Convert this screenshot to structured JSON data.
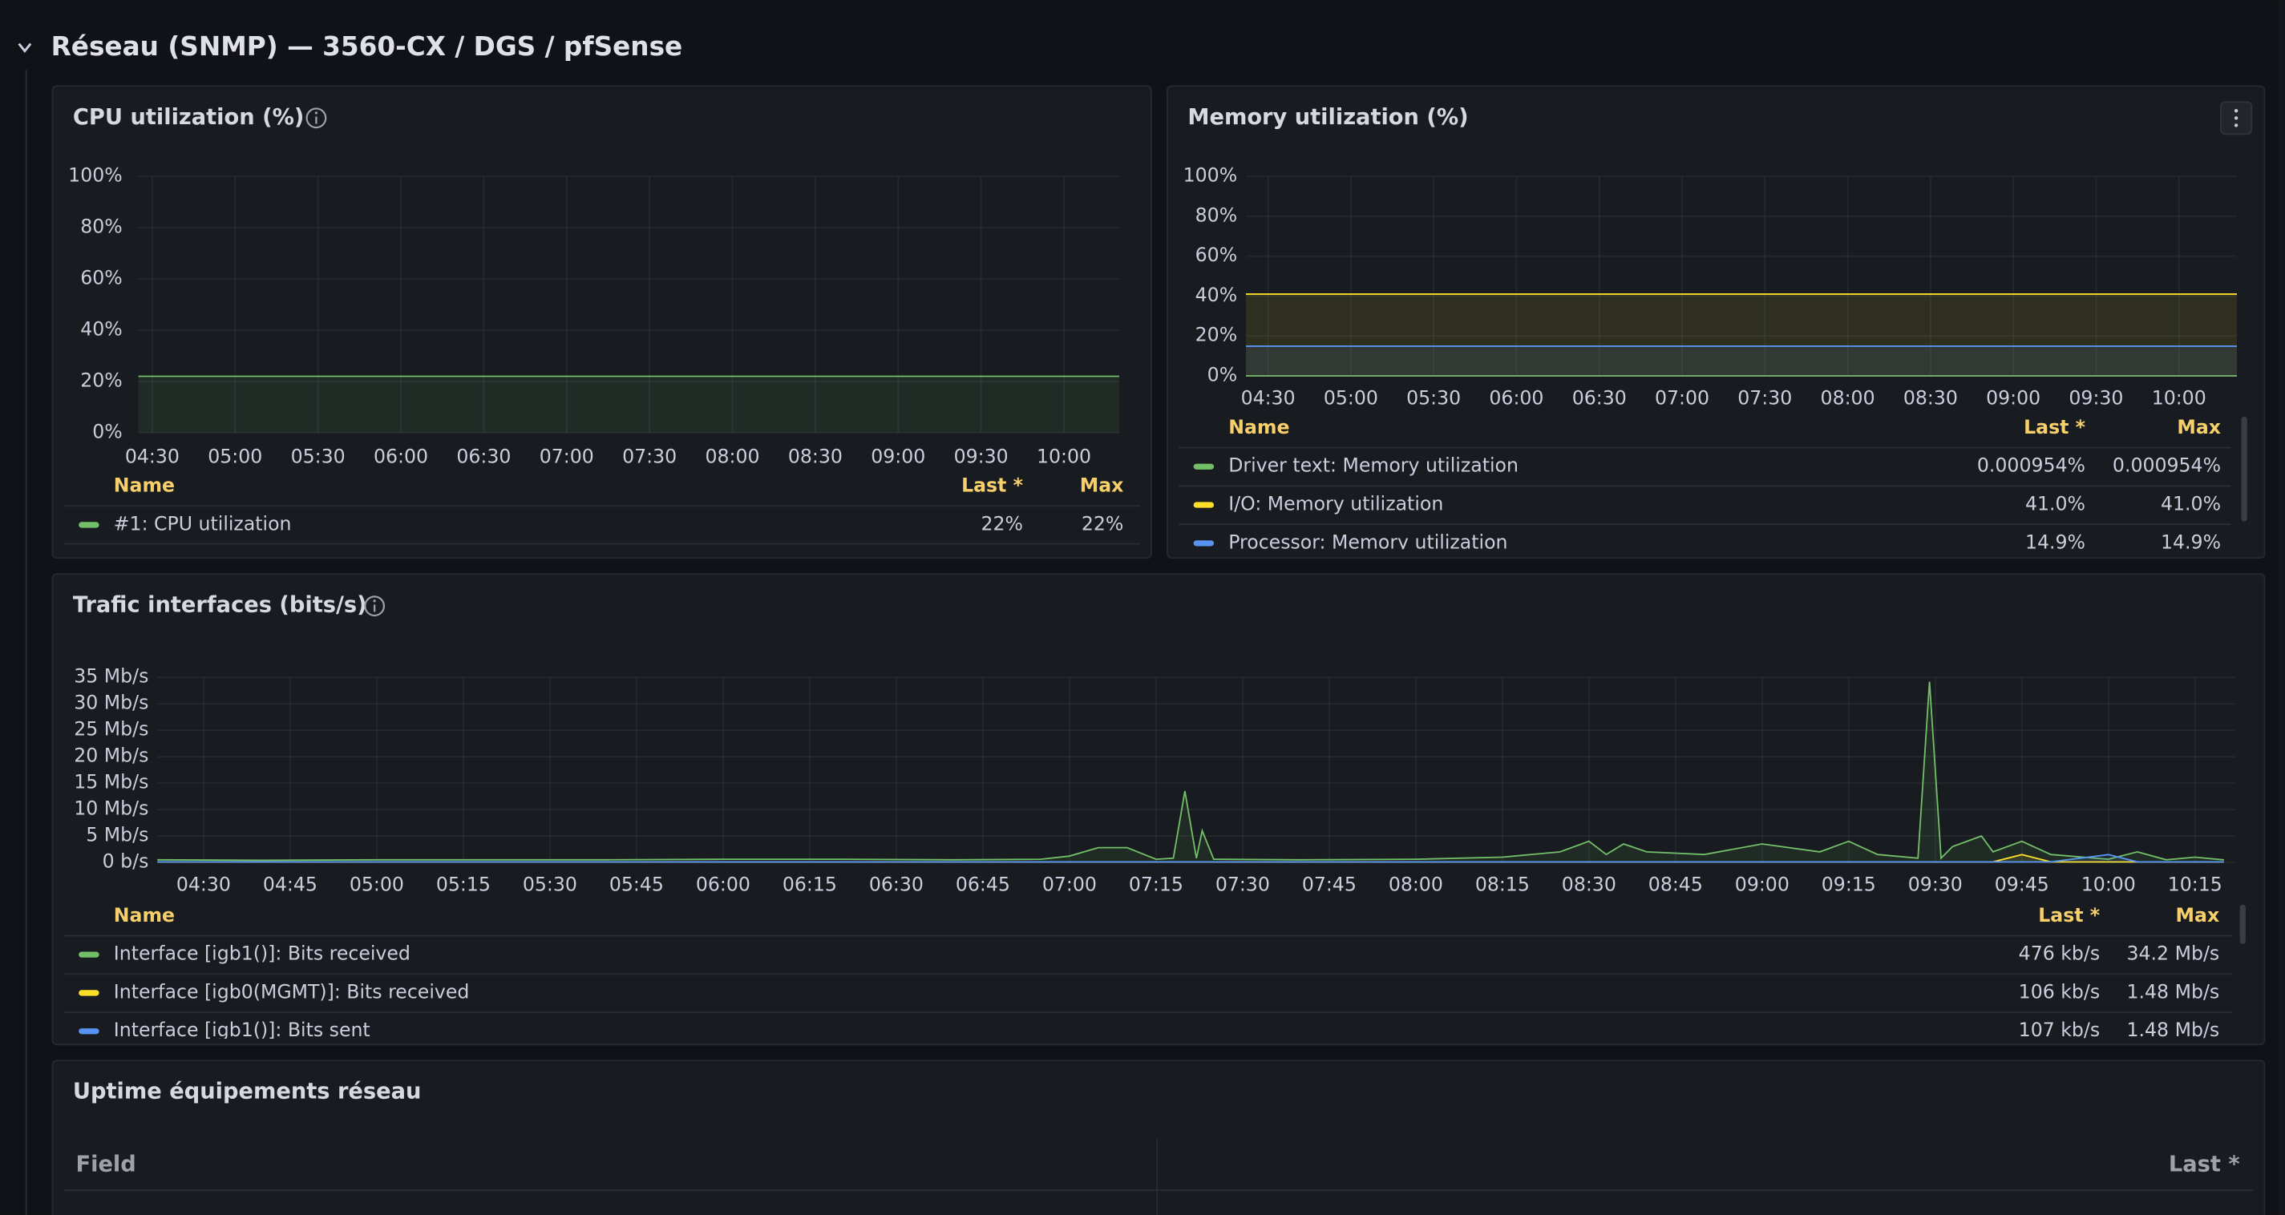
{
  "row_title": "Réseau (SNMP) — 3560-CX / DGS / pfSense",
  "chart_data": [
    {
      "type": "line",
      "title": "CPU utilization (%)",
      "x": [
        "04:25",
        "10:20"
      ],
      "xlim": [
        "04:25",
        "10:20"
      ],
      "xticks": [
        "04:30",
        "05:00",
        "05:30",
        "06:00",
        "06:30",
        "07:00",
        "07:30",
        "08:00",
        "08:30",
        "09:00",
        "09:30",
        "10:00"
      ],
      "ylim": [
        0,
        100
      ],
      "yticks": [
        {
          "value": 0,
          "label": "0%"
        },
        {
          "value": 20,
          "label": "20%"
        },
        {
          "value": 40,
          "label": "40%"
        },
        {
          "value": 60,
          "label": "60%"
        },
        {
          "value": 80,
          "label": "80%"
        },
        {
          "value": 100,
          "label": "100%"
        }
      ],
      "grid": true,
      "legend_columns": [
        "Name",
        "Last *",
        "Max"
      ],
      "series": [
        {
          "name": "#1: CPU utilization",
          "color": "#73bf69",
          "values": [
            22,
            22
          ],
          "last": "22%",
          "max": "22%"
        }
      ]
    },
    {
      "type": "line",
      "title": "Memory utilization (%)",
      "x": [
        "04:22",
        "10:21"
      ],
      "xlim": [
        "04:22",
        "10:21"
      ],
      "xticks": [
        "04:30",
        "05:00",
        "05:30",
        "06:00",
        "06:30",
        "07:00",
        "07:30",
        "08:00",
        "08:30",
        "09:00",
        "09:30",
        "10:00"
      ],
      "ylim": [
        0,
        100
      ],
      "yticks": [
        {
          "value": 0,
          "label": "0%"
        },
        {
          "value": 20,
          "label": "20%"
        },
        {
          "value": 40,
          "label": "40%"
        },
        {
          "value": 60,
          "label": "60%"
        },
        {
          "value": 80,
          "label": "80%"
        },
        {
          "value": 100,
          "label": "100%"
        }
      ],
      "grid": true,
      "legend_columns": [
        "Name",
        "Last *",
        "Max"
      ],
      "series": [
        {
          "name": "Driver text: Memory utilization",
          "color": "#73bf69",
          "values": [
            0.000954,
            0.000954
          ],
          "last": "0.000954%",
          "max": "0.000954%"
        },
        {
          "name": "I/O: Memory utilization",
          "color": "#fade2a",
          "values": [
            41.0,
            41.0
          ],
          "last": "41.0%",
          "max": "41.0%"
        },
        {
          "name": "Processor: Memory utilization",
          "color": "#5794f2",
          "values": [
            14.9,
            14.9
          ],
          "last": "14.9%",
          "max": "14.9%"
        }
      ]
    },
    {
      "type": "line",
      "title": "Trafic interfaces (bits/s)",
      "x": [
        "04:22",
        "04:40",
        "05:00",
        "05:20",
        "05:40",
        "06:00",
        "06:20",
        "06:40",
        "06:55",
        "07:00",
        "07:05",
        "07:10",
        "07:15",
        "07:18",
        "07:20",
        "07:22",
        "07:23",
        "07:25",
        "07:40",
        "08:00",
        "08:15",
        "08:25",
        "08:30",
        "08:33",
        "08:36",
        "08:40",
        "08:50",
        "09:00",
        "09:10",
        "09:15",
        "09:20",
        "09:27",
        "09:29",
        "09:31",
        "09:33",
        "09:38",
        "09:40",
        "09:45",
        "09:50",
        "10:00",
        "10:05",
        "10:10",
        "10:15",
        "10:20"
      ],
      "xlim": [
        "04:22",
        "10:22"
      ],
      "xticks": [
        "04:30",
        "04:45",
        "05:00",
        "05:15",
        "05:30",
        "05:45",
        "06:00",
        "06:15",
        "06:30",
        "06:45",
        "07:00",
        "07:15",
        "07:30",
        "07:45",
        "08:00",
        "08:15",
        "08:30",
        "08:45",
        "09:00",
        "09:15",
        "09:30",
        "09:45",
        "10:00",
        "10:15"
      ],
      "ylim": [
        0,
        35
      ],
      "yticks": [
        {
          "value": 0,
          "label": "0 b/s"
        },
        {
          "value": 5,
          "label": "5 Mb/s"
        },
        {
          "value": 10,
          "label": "10 Mb/s"
        },
        {
          "value": 15,
          "label": "15 Mb/s"
        },
        {
          "value": 20,
          "label": "20 Mb/s"
        },
        {
          "value": 25,
          "label": "25 Mb/s"
        },
        {
          "value": 30,
          "label": "30 Mb/s"
        },
        {
          "value": 35,
          "label": "35 Mb/s"
        }
      ],
      "grid": true,
      "legend_columns": [
        "Name",
        "Last *",
        "Max"
      ],
      "series": [
        {
          "name": "Interface [igb1()]: Bits received",
          "color": "#73bf69",
          "values": [
            0.5,
            0.4,
            0.5,
            0.5,
            0.5,
            0.6,
            0.6,
            0.5,
            0.6,
            1.2,
            2.8,
            2.8,
            0.6,
            0.8,
            13.5,
            0.8,
            6.0,
            0.6,
            0.5,
            0.6,
            1.0,
            2.0,
            4.0,
            1.5,
            3.5,
            2.0,
            1.5,
            3.5,
            2.0,
            4.0,
            1.5,
            0.8,
            34.2,
            0.8,
            3.0,
            5.0,
            2.0,
            4.0,
            1.5,
            0.6,
            2.0,
            0.5,
            1.0,
            0.476
          ],
          "last": "476 kb/s",
          "max": "34.2 Mb/s"
        },
        {
          "name": "Interface [igb0(MGMT)]: Bits received",
          "color": "#fade2a",
          "values": [
            0.1,
            0.1,
            0.1,
            0.1,
            0.1,
            0.1,
            0.1,
            0.1,
            0.1,
            0.1,
            0.1,
            0.1,
            0.1,
            0.1,
            0.1,
            0.1,
            0.1,
            0.1,
            0.1,
            0.1,
            0.1,
            0.1,
            0.1,
            0.1,
            0.1,
            0.1,
            0.1,
            0.1,
            0.1,
            0.1,
            0.1,
            0.1,
            0.1,
            0.1,
            0.1,
            0.1,
            0.1,
            1.48,
            0.1,
            0.1,
            0.1,
            0.1,
            0.1,
            0.106
          ],
          "last": "106 kb/s",
          "max": "1.48 Mb/s"
        },
        {
          "name": "Interface [igb1()]: Bits sent",
          "color": "#5794f2",
          "values": [
            0.1,
            0.1,
            0.1,
            0.1,
            0.1,
            0.1,
            0.1,
            0.1,
            0.1,
            0.1,
            0.1,
            0.1,
            0.1,
            0.1,
            0.1,
            0.1,
            0.1,
            0.1,
            0.1,
            0.1,
            0.1,
            0.1,
            0.1,
            0.1,
            0.1,
            0.1,
            0.1,
            0.1,
            0.1,
            0.1,
            0.1,
            0.1,
            0.1,
            0.1,
            0.1,
            0.1,
            0.1,
            0.1,
            0.1,
            1.48,
            0.1,
            0.1,
            0.1,
            0.107
          ],
          "last": "107 kb/s",
          "max": "1.48 Mb/s"
        }
      ]
    }
  ],
  "uptime_panel": {
    "title": "Uptime équipements réseau",
    "columns": [
      "Field",
      "Last *"
    ]
  }
}
